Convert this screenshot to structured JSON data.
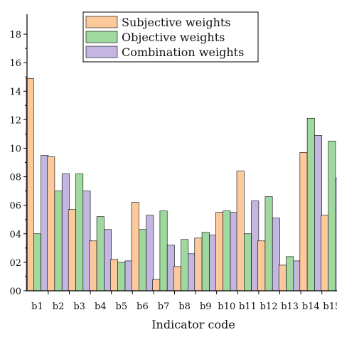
{
  "chart_data": {
    "type": "bar",
    "title": "",
    "xlabel": "Indicator code",
    "ylabel": "",
    "ylim": [
      0,
      0.19
    ],
    "yticks": [
      0,
      0.02,
      0.04,
      0.06,
      0.08,
      0.1,
      0.12,
      0.14,
      0.16,
      0.18
    ],
    "ytick_labels": [
      "00",
      "02",
      "04",
      "06",
      "08",
      "10",
      "12",
      "14",
      "16",
      "18"
    ],
    "categories": [
      "b1",
      "b2",
      "b3",
      "b4",
      "b5",
      "b6",
      "b7",
      "b8",
      "b9",
      "b10",
      "b11",
      "b12",
      "b13",
      "b14",
      "b15"
    ],
    "grid": false,
    "legend_position": "top-center",
    "series": [
      {
        "name": "Subjective weights",
        "color": "#fcc99c",
        "values": [
          0.149,
          0.094,
          0.057,
          0.035,
          0.022,
          0.062,
          0.008,
          0.017,
          0.037,
          0.055,
          0.084,
          0.035,
          0.018,
          0.097,
          0.053
        ]
      },
      {
        "name": "Objective weights",
        "color": "#9fd99f",
        "values": [
          0.04,
          0.07,
          0.082,
          0.052,
          0.02,
          0.043,
          0.056,
          0.036,
          0.041,
          0.056,
          0.04,
          0.066,
          0.024,
          0.121,
          0.105
        ]
      },
      {
        "name": "Combination weights",
        "color": "#c3b7e2",
        "values": [
          0.095,
          0.082,
          0.07,
          0.043,
          0.021,
          0.053,
          0.032,
          0.026,
          0.039,
          0.055,
          0.063,
          0.051,
          0.021,
          0.109,
          0.079
        ]
      }
    ]
  }
}
